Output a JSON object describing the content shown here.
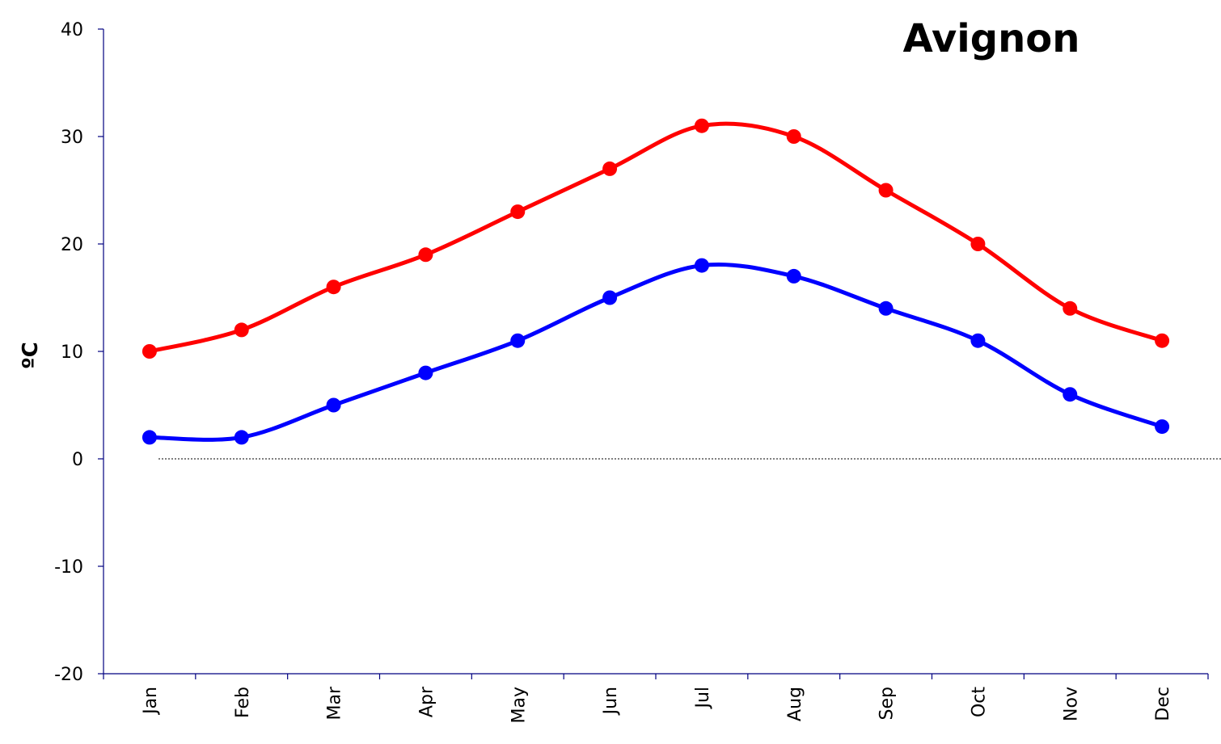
{
  "chart_data": {
    "type": "line",
    "title": "Avignon",
    "xlabel": "",
    "ylabel": "ºC",
    "categories": [
      "Jan",
      "Feb",
      "Mar",
      "Apr",
      "May",
      "Jun",
      "Jul",
      "Aug",
      "Sep",
      "Oct",
      "Nov",
      "Dec"
    ],
    "ylim": [
      -20,
      40
    ],
    "yticks": [
      -20,
      -10,
      0,
      10,
      20,
      30,
      40
    ],
    "grid": false,
    "zero_line": "dotted",
    "series": [
      {
        "color": "#ff0000",
        "values": [
          10,
          12,
          16,
          19,
          23,
          27,
          31,
          30,
          25,
          20,
          14,
          11
        ]
      },
      {
        "color": "#0000ff",
        "values": [
          2,
          2,
          5,
          8,
          11,
          15,
          18,
          17,
          14,
          11,
          6,
          3
        ]
      }
    ]
  }
}
